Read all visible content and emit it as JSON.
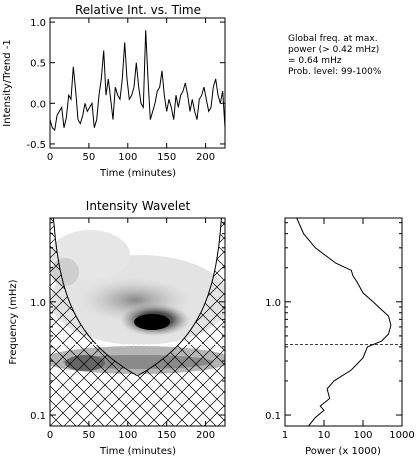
{
  "annotation": {
    "line1": "Global freq. at max.",
    "line2": "power (> 0.42 mHz)",
    "line3": "= 0.64 mHz",
    "line4": "Prob. level: 99-100%"
  },
  "chart_data": [
    {
      "type": "line",
      "title": "Relative Int. vs. Time",
      "xlabel": "Time (minutes)",
      "ylabel": "Intensity/Trend -1",
      "xlim": [
        0,
        225
      ],
      "ylim": [
        -0.55,
        1.05
      ],
      "xticks": [
        0,
        50,
        100,
        150,
        200
      ],
      "yticks": [
        -0.5,
        0.0,
        0.5,
        1.0
      ],
      "ytick_labels": [
        "-0.5",
        "0.0",
        "0.5",
        "1.0"
      ],
      "x": [
        0,
        3,
        6,
        9,
        12,
        15,
        18,
        21,
        24,
        27,
        30,
        33,
        36,
        39,
        42,
        45,
        48,
        51,
        54,
        57,
        60,
        63,
        66,
        69,
        72,
        75,
        78,
        81,
        84,
        87,
        90,
        93,
        96,
        99,
        102,
        105,
        108,
        111,
        114,
        117,
        120,
        123,
        126,
        129,
        132,
        135,
        138,
        141,
        144,
        147,
        150,
        153,
        156,
        159,
        162,
        165,
        168,
        171,
        174,
        177,
        180,
        183,
        186,
        189,
        192,
        195,
        198,
        201,
        204,
        207,
        210,
        213,
        216,
        219,
        222,
        225
      ],
      "y": [
        -0.2,
        -0.3,
        -0.33,
        -0.15,
        -0.1,
        -0.05,
        -0.3,
        -0.18,
        0.1,
        0.05,
        0.45,
        0.15,
        -0.2,
        -0.25,
        -0.15,
        0.0,
        -0.1,
        -0.05,
        0.0,
        -0.3,
        -0.2,
        0.1,
        0.3,
        0.65,
        0.1,
        0.3,
        0.05,
        -0.2,
        0.2,
        0.1,
        0.05,
        0.3,
        0.75,
        0.3,
        0.05,
        0.1,
        0.2,
        0.5,
        0.2,
        0.0,
        -0.05,
        0.9,
        0.3,
        -0.2,
        -0.1,
        0.0,
        0.15,
        0.2,
        0.4,
        0.1,
        -0.1,
        0.05,
        -0.05,
        -0.2,
        0.1,
        -0.05,
        0.1,
        0.15,
        0.25,
        0.1,
        -0.1,
        0.05,
        -0.1,
        -0.2,
        0.05,
        0.1,
        0.2,
        0.05,
        -0.1,
        -0.05,
        0.2,
        0.3,
        0.1,
        0.0,
        0.15,
        -0.3
      ]
    },
    {
      "type": "heatmap",
      "title": "Intensity Wavelet",
      "xlabel": "Time (minutes)",
      "ylabel": "Frequency (mHz)",
      "xlim": [
        0,
        225
      ],
      "ylim": [
        0.08,
        5.5
      ],
      "yscale": "log",
      "xticks": [
        0,
        50,
        100,
        150,
        200
      ],
      "yticks": [
        0.1,
        1.0
      ],
      "ytick_labels": [
        "0.1",
        "1.0"
      ],
      "reference_line_frequency": 0.42,
      "cone_of_influence": "hatched",
      "power_peaks": [
        {
          "time": 115,
          "frequency": 0.64,
          "power": 1.0
        },
        {
          "time": 90,
          "frequency": 0.9,
          "power": 0.8
        },
        {
          "time": 60,
          "frequency": 0.5,
          "power": 0.6
        },
        {
          "time": 170,
          "frequency": 0.35,
          "power": 0.5
        }
      ]
    },
    {
      "type": "line",
      "title": "",
      "xlabel": "Power (x 1000)",
      "ylabel": "",
      "xscale": "log",
      "yscale": "log",
      "xlim": [
        1,
        1000
      ],
      "ylim": [
        0.08,
        5.5
      ],
      "xticks": [
        1,
        10,
        100,
        1000
      ],
      "yticks": [
        0.1,
        1.0
      ],
      "ytick_labels": [
        "0.1",
        "1.0"
      ],
      "reference_line_frequency": 0.42,
      "power": [
        2,
        3,
        6,
        20,
        50,
        55,
        70,
        100,
        180,
        300,
        450,
        520,
        450,
        300,
        130,
        100,
        50,
        18,
        12,
        14,
        8,
        10,
        6,
        4
      ],
      "frequency": [
        5.5,
        4,
        3,
        2.2,
        1.9,
        1.7,
        1.5,
        1.2,
        1.0,
        0.85,
        0.75,
        0.62,
        0.52,
        0.45,
        0.4,
        0.32,
        0.25,
        0.2,
        0.17,
        0.14,
        0.12,
        0.11,
        0.095,
        0.08
      ]
    }
  ]
}
